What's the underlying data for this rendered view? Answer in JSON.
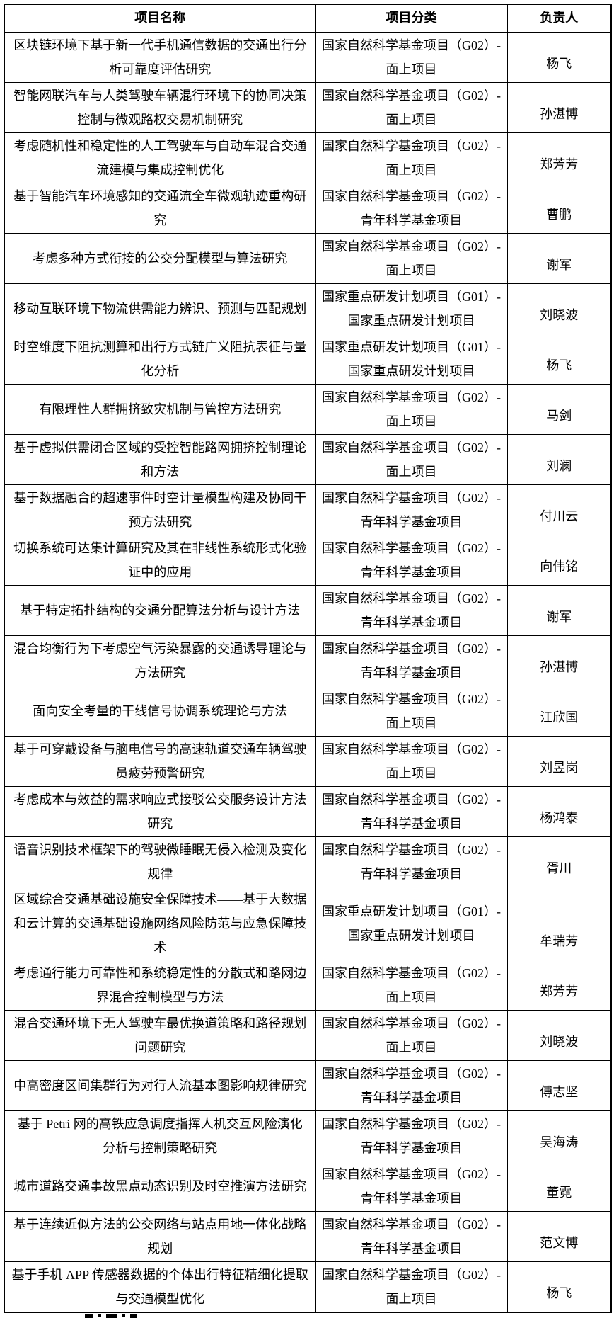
{
  "table": {
    "headers": [
      "项目名称",
      "项目分类",
      "负责人"
    ],
    "border_color": "#000000",
    "text_color": "#000000",
    "rows": [
      {
        "name": "区块链环境下基于新一代手机通信数据的交通出行分析可靠度评估研究",
        "category_lines": [
          "国家自然科学基金项目（G02）-",
          "面上项目"
        ],
        "leader": "杨飞"
      },
      {
        "name": "智能网联汽车与人类驾驶车辆混行环境下的协同决策控制与微观路权交易机制研究",
        "category_lines": [
          "国家自然科学基金项目（G02）-",
          "面上项目"
        ],
        "leader": "孙湛博"
      },
      {
        "name": "考虑随机性和稳定性的人工驾驶车与自动车混合交通流建模与集成控制优化",
        "category_lines": [
          "国家自然科学基金项目（G02）-",
          "面上项目"
        ],
        "leader": "郑芳芳"
      },
      {
        "name": "基于智能汽车环境感知的交通流全车微观轨迹重构研究",
        "category_lines": [
          "国家自然科学基金项目（G02）-",
          "青年科学基金项目"
        ],
        "leader": "曹鹏"
      },
      {
        "name": "考虑多种方式衔接的公交分配模型与算法研究",
        "category_lines": [
          "国家自然科学基金项目（G02）-",
          "面上项目"
        ],
        "leader": "谢军"
      },
      {
        "name": "移动互联环境下物流供需能力辨识、预测与匹配规划",
        "category_lines": [
          "国家重点研发计划项目（G01）-",
          "国家重点研发计划项目"
        ],
        "leader": "刘晓波"
      },
      {
        "name": "时空维度下阻抗测算和出行方式链广义阻抗表征与量化分析",
        "category_lines": [
          "国家重点研发计划项目（G01）-",
          "国家重点研发计划项目"
        ],
        "leader": "杨飞"
      },
      {
        "name": "有限理性人群拥挤致灾机制与管控方法研究",
        "category_lines": [
          "国家自然科学基金项目（G02）-",
          "面上项目"
        ],
        "leader": "马剑"
      },
      {
        "name": "基于虚拟供需闭合区域的受控智能路网拥挤控制理论和方法",
        "category_lines": [
          "国家自然科学基金项目（G02）-",
          "面上项目"
        ],
        "leader": "刘澜"
      },
      {
        "name": "基于数据融合的超速事件时空计量模型构建及协同干预方法研究",
        "category_lines": [
          "国家自然科学基金项目（G02）-",
          "青年科学基金项目"
        ],
        "leader": "付川云"
      },
      {
        "name": "切换系统可达集计算研究及其在非线性系统形式化验证中的应用",
        "category_lines": [
          "国家自然科学基金项目（G02）-",
          "青年科学基金项目"
        ],
        "leader": "向伟铭"
      },
      {
        "name": "基于特定拓扑结构的交通分配算法分析与设计方法",
        "category_lines": [
          "国家自然科学基金项目（G02）-",
          "青年科学基金项目"
        ],
        "leader": "谢军"
      },
      {
        "name": "混合均衡行为下考虑空气污染暴露的交通诱导理论与方法研究",
        "category_lines": [
          "国家自然科学基金项目（G02）-",
          "青年科学基金项目"
        ],
        "leader": "孙湛博"
      },
      {
        "name": "面向安全考量的干线信号协调系统理论与方法",
        "category_lines": [
          "国家自然科学基金项目（G02）-",
          "面上项目"
        ],
        "leader": "江欣国"
      },
      {
        "name": "基于可穿戴设备与脑电信号的高速轨道交通车辆驾驶员疲劳预警研究",
        "category_lines": [
          "国家自然科学基金项目（G02）-",
          "面上项目"
        ],
        "leader": "刘昱岗"
      },
      {
        "name": "考虑成本与效益的需求响应式接驳公交服务设计方法研究",
        "category_lines": [
          "国家自然科学基金项目（G02）-",
          "青年科学基金项目"
        ],
        "leader": "杨鸿泰"
      },
      {
        "name": "语音识别技术框架下的驾驶微睡眠无侵入检测及变化规律",
        "category_lines": [
          "国家自然科学基金项目（G02）-",
          "青年科学基金项目"
        ],
        "leader": "胥川"
      },
      {
        "name": "区域综合交通基础设施安全保障技术——基于大数据和云计算的交通基础设施网络风险防范与应急保障技术",
        "category_lines": [
          "国家重点研发计划项目（G01）-",
          "国家重点研发计划项目"
        ],
        "leader": "牟瑞芳"
      },
      {
        "name": "考虑通行能力可靠性和系统稳定性的分散式和路网边界混合控制模型与方法",
        "category_lines": [
          "国家自然科学基金项目（G02）-",
          "面上项目"
        ],
        "leader": "郑芳芳"
      },
      {
        "name": "混合交通环境下无人驾驶车最优换道策略和路径规划问题研究",
        "category_lines": [
          "国家自然科学基金项目（G02）-",
          "面上项目"
        ],
        "leader": "刘晓波"
      },
      {
        "name": "中高密度区间集群行为对行人流基本图影响规律研究",
        "category_lines": [
          "国家自然科学基金项目（G02）-",
          "青年科学基金项目"
        ],
        "leader": "傅志坚"
      },
      {
        "name": "基于 Petri 网的高铁应急调度指挥人机交互风险演化分析与控制策略研究",
        "category_lines": [
          "国家自然科学基金项目（G02）-",
          "青年科学基金项目"
        ],
        "leader": "吴海涛"
      },
      {
        "name": "城市道路交通事故黑点动态识别及时空推演方法研究",
        "category_lines": [
          "国家自然科学基金项目（G02）-",
          "青年科学基金项目"
        ],
        "leader": "董霓"
      },
      {
        "name": "基于连续近似方法的公交网络与站点用地一体化战略规划",
        "category_lines": [
          "国家自然科学基金项目（G02）-",
          "青年科学基金项目"
        ],
        "leader": "范文博"
      },
      {
        "name": "基于手机 APP 传感器数据的个体出行特征精细化提取与交通模型优化",
        "category_lines": [
          "国家自然科学基金项目（G02）-",
          "面上项目"
        ],
        "leader": "杨飞"
      }
    ]
  }
}
